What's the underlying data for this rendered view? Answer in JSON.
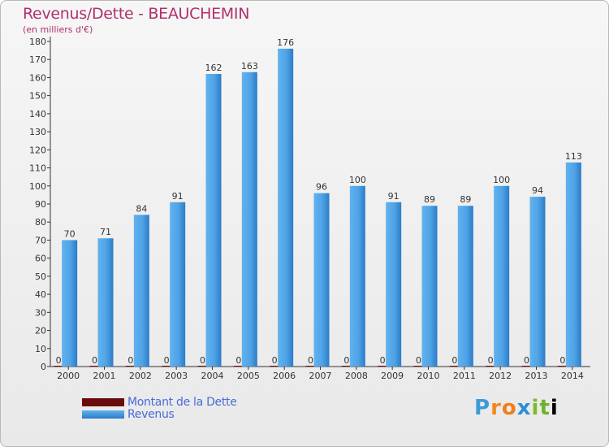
{
  "header": {
    "title": "Revenus/Dette - BEAUCHEMIN",
    "subtitle": "(en milliers d'€)"
  },
  "colors": {
    "title": "#b0306c",
    "revenus": "#3d8fd8",
    "dette": "#6b0a0a",
    "legend_text": "#4a6ad8"
  },
  "chart_data": {
    "type": "bar",
    "categories": [
      "2000",
      "2001",
      "2002",
      "2003",
      "2004",
      "2005",
      "2006",
      "2007",
      "2008",
      "2009",
      "2010",
      "2011",
      "2012",
      "2013",
      "2014"
    ],
    "series": [
      {
        "name": "Montant de la Dette",
        "values": [
          0,
          0,
          0,
          0,
          0,
          0,
          0,
          0,
          0,
          0,
          0,
          0,
          0,
          0,
          0
        ]
      },
      {
        "name": "Revenus",
        "values": [
          70,
          71,
          84,
          91,
          162,
          163,
          176,
          96,
          100,
          91,
          89,
          89,
          100,
          94,
          113
        ]
      }
    ],
    "ylim": [
      0,
      180
    ],
    "yticks": [
      0,
      10,
      20,
      30,
      40,
      50,
      60,
      70,
      80,
      90,
      100,
      110,
      120,
      130,
      140,
      150,
      160,
      170,
      180
    ],
    "grid": false,
    "legend_position": "bottom-left"
  },
  "legend": {
    "items": [
      "Montant de la Dette",
      "Revenus"
    ]
  },
  "logo": {
    "letters": [
      "P",
      "r",
      "o",
      "x",
      "i",
      "t",
      "i"
    ]
  }
}
